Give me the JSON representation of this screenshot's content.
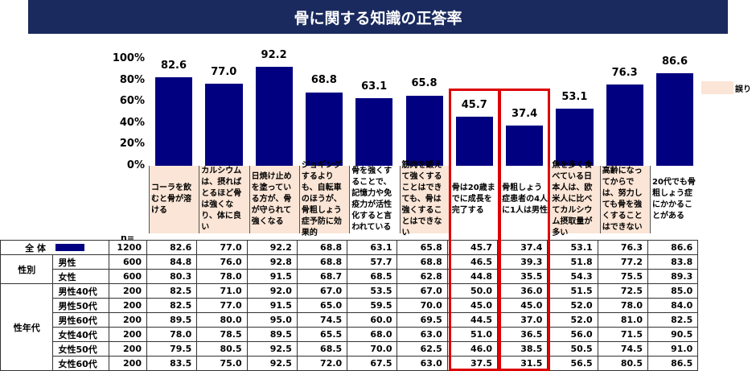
{
  "title": "骨に関する知識の正答率",
  "legend": {
    "label": "誤り",
    "color": "#fbe5d6"
  },
  "n_label": "n=",
  "chart_data": {
    "type": "bar",
    "title": "骨に関する知識の正答率",
    "ylim": [
      0,
      100
    ],
    "yticks": [
      "0%",
      "20%",
      "40%",
      "60%",
      "80%",
      "100%"
    ],
    "bar_color": "#000080",
    "categories": [
      "コーラを飲むと骨が溶ける",
      "カルシウムは、摂ればとるほど骨は強くなり、体に良い",
      "日焼け止めを塗っている方が、骨が守られて強くなる",
      "ジョギングするよりも、自転車のほうが、骨粗しょう症予防に効果的",
      "骨を強くすることで、記憶力や免疫力が活性化すると言われている",
      "筋肉を鍛えて強くすることはできても、骨は強くすることはできない",
      "骨は20歳までに成長を完了する",
      "骨粗しょう症患者の4人に1人は男性",
      "魚を多く食べている日本人は、欧米人に比べてカルシウム摂取量が多い",
      "高齢になってからでは、努力しても骨を強くすることはできない",
      "20代でも骨粗しょう症にかかることがある"
    ],
    "is_false": [
      true,
      true,
      true,
      true,
      false,
      true,
      false,
      false,
      true,
      true,
      false
    ],
    "highlighted": [
      false,
      false,
      false,
      false,
      false,
      false,
      true,
      true,
      false,
      false,
      false
    ],
    "values": [
      82.6,
      77.0,
      92.2,
      68.8,
      63.1,
      65.8,
      45.7,
      37.4,
      53.1,
      76.3,
      86.6
    ],
    "value_labels": [
      "82.6",
      "77.0",
      "92.2",
      "68.8",
      "63.1",
      "65.8",
      "45.7",
      "37.4",
      "53.1",
      "76.3",
      "86.6"
    ]
  },
  "table": {
    "rows": [
      {
        "group": "全 体",
        "sub": "",
        "n": "1200",
        "values": [
          "82.6",
          "77.0",
          "92.2",
          "68.8",
          "63.1",
          "65.8",
          "45.7",
          "37.4",
          "53.1",
          "76.3",
          "86.6"
        ]
      },
      {
        "group": "性別",
        "sub": "男性",
        "n": "600",
        "values": [
          "84.8",
          "76.0",
          "92.8",
          "68.8",
          "57.7",
          "68.8",
          "46.5",
          "39.3",
          "51.8",
          "77.2",
          "83.8"
        ]
      },
      {
        "group": "",
        "sub": "女性",
        "n": "600",
        "values": [
          "80.3",
          "78.0",
          "91.5",
          "68.7",
          "68.5",
          "62.8",
          "44.8",
          "35.5",
          "54.3",
          "75.5",
          "89.3"
        ]
      },
      {
        "group": "性年代",
        "sub": "男性40代",
        "n": "200",
        "values": [
          "82.5",
          "71.0",
          "92.0",
          "67.0",
          "53.5",
          "67.0",
          "50.0",
          "36.0",
          "51.5",
          "72.5",
          "85.0"
        ]
      },
      {
        "group": "",
        "sub": "男性50代",
        "n": "200",
        "values": [
          "82.5",
          "77.0",
          "91.5",
          "65.0",
          "59.5",
          "70.0",
          "45.0",
          "45.0",
          "52.0",
          "78.0",
          "84.0"
        ]
      },
      {
        "group": "",
        "sub": "男性60代",
        "n": "200",
        "values": [
          "89.5",
          "80.0",
          "95.0",
          "74.5",
          "60.0",
          "69.5",
          "44.5",
          "37.0",
          "52.0",
          "81.0",
          "82.5"
        ]
      },
      {
        "group": "",
        "sub": "女性40代",
        "n": "200",
        "values": [
          "78.0",
          "78.5",
          "89.5",
          "65.5",
          "68.0",
          "63.0",
          "51.0",
          "36.5",
          "56.0",
          "71.5",
          "90.5"
        ]
      },
      {
        "group": "",
        "sub": "女性50代",
        "n": "200",
        "values": [
          "79.5",
          "80.5",
          "92.5",
          "68.5",
          "70.0",
          "62.5",
          "46.0",
          "38.5",
          "50.5",
          "74.5",
          "91.0"
        ]
      },
      {
        "group": "",
        "sub": "女性60代",
        "n": "200",
        "values": [
          "83.5",
          "75.0",
          "92.5",
          "72.0",
          "67.5",
          "63.0",
          "37.5",
          "31.5",
          "56.5",
          "80.5",
          "86.5"
        ]
      }
    ]
  }
}
